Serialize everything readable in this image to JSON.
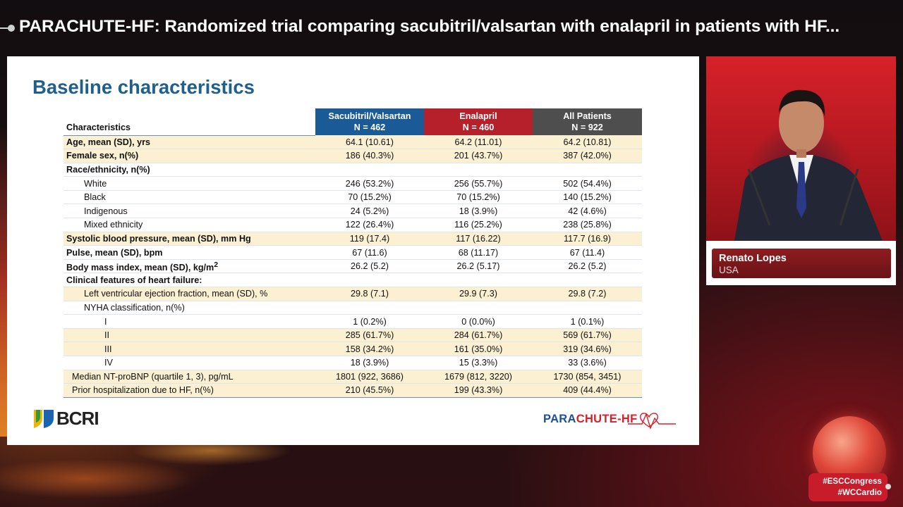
{
  "header": {
    "title": "PARACHUTE-HF: Randomized trial comparing sacubitril/valsartan with enalapril in patients with HF..."
  },
  "slide": {
    "title": "Baseline characteristics",
    "table": {
      "col_label": "Characteristics",
      "groups": [
        {
          "name": "Sacubitril/Valsartan",
          "n": "N = 462",
          "color": "#1a5a96"
        },
        {
          "name": "Enalapril",
          "n": "N = 460",
          "color": "#b5202b"
        },
        {
          "name": "All Patients",
          "n": "N = 922",
          "color": "#4e4e4e"
        }
      ],
      "rows": [
        {
          "label": "Age, mean (SD), yrs",
          "v1": "64.1 (10.61)",
          "v2": "64.2 (11.01)",
          "v3": "64.2 (10.81)"
        },
        {
          "label": "Female sex, n(%)",
          "v1": "186 (40.3%)",
          "v2": "201 (43.7%)",
          "v3": "387 (42.0%)"
        },
        {
          "label": "Race/ethnicity, n(%)",
          "v1": "",
          "v2": "",
          "v3": ""
        },
        {
          "label": "White",
          "v1": "246 (53.2%)",
          "v2": "256 (55.7%)",
          "v3": "502 (54.4%)"
        },
        {
          "label": "Black",
          "v1": "70 (15.2%)",
          "v2": "70 (15.2%)",
          "v3": "140 (15.2%)"
        },
        {
          "label": "Indigenous",
          "v1": "24 (5.2%)",
          "v2": "18 (3.9%)",
          "v3": "42 (4.6%)"
        },
        {
          "label": "Mixed ethnicity",
          "v1": "122 (26.4%)",
          "v2": "116 (25.2%)",
          "v3": "238 (25.8%)"
        },
        {
          "label": "Systolic blood pressure, mean (SD), mm Hg",
          "v1": "119 (17.4)",
          "v2": "117 (16.22)",
          "v3": "117.7 (16.9)"
        },
        {
          "label": "Pulse, mean (SD), bpm",
          "v1": "67 (11.6)",
          "v2": "68 (11.17)",
          "v3": "67 (11.4)"
        },
        {
          "label": "Body mass index, mean (SD), kg/m",
          "sup": "2",
          "v1": "26.2 (5.2)",
          "v2": "26.2 (5.17)",
          "v3": "26.2 (5.2)"
        },
        {
          "label": "Clinical features of heart failure:",
          "v1": "",
          "v2": "",
          "v3": ""
        },
        {
          "label": "Left ventricular ejection fraction, mean (SD), %",
          "v1": "29.8 (7.1)",
          "v2": "29.9 (7.3)",
          "v3": "29.8 (7.2)"
        },
        {
          "label": "NYHA classification, n(%)",
          "v1": "",
          "v2": "",
          "v3": ""
        },
        {
          "label": "I",
          "v1": "1 (0.2%)",
          "v2": "0 (0.0%)",
          "v3": "1 (0.1%)"
        },
        {
          "label": "II",
          "v1": "285 (61.7%)",
          "v2": "284 (61.7%)",
          "v3": "569 (61.7%)"
        },
        {
          "label": "III",
          "v1": "158 (34.2%)",
          "v2": "161 (35.0%)",
          "v3": "319 (34.6%)"
        },
        {
          "label": "IV",
          "v1": "18 (3.9%)",
          "v2": "15 (3.3%)",
          "v3": "33 (3.6%)"
        },
        {
          "label": "Median NT-proBNP (quartile 1, 3), pg/mL",
          "v1": "1801 (922, 3686)",
          "v2": "1679 (812, 3220)",
          "v3": "1730 (854, 3451)"
        },
        {
          "label": "Prior hospitalization due to HF, n(%)",
          "v1": "210 (45.5%)",
          "v2": "199 (43.3%)",
          "v3": "409 (44.4%)"
        }
      ]
    },
    "logos": {
      "left": "BCRI",
      "right_part1": "PARA",
      "right_part2": "CHUTE",
      "right_part3": "-HF"
    }
  },
  "speaker": {
    "name": "Renato Lopes",
    "country": "USA"
  },
  "hashtags": {
    "line1": "#ESCCongress",
    "line2": "#WCCardio"
  }
}
